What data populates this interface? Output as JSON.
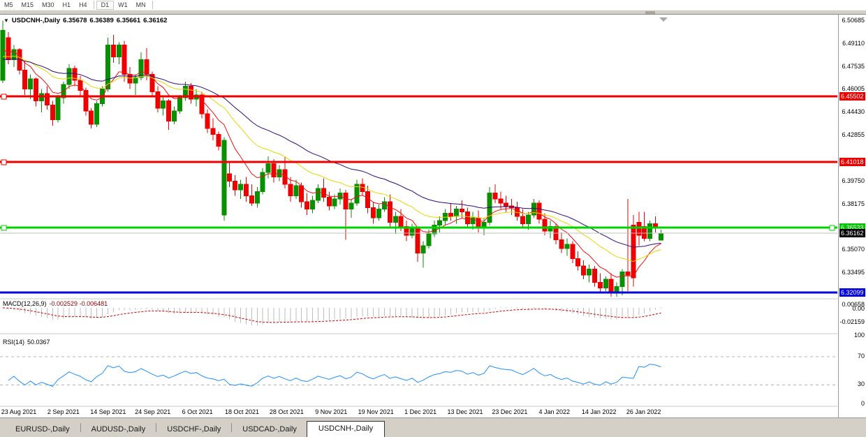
{
  "toolbar": {
    "timeframes": [
      {
        "label": "M5"
      },
      {
        "label": "M15"
      },
      {
        "label": "M30"
      },
      {
        "label": "H1"
      },
      {
        "label": "H4"
      },
      {
        "label": "D1"
      },
      {
        "label": "W1"
      },
      {
        "label": "MN"
      }
    ],
    "selected": "D1"
  },
  "icons": {
    "dropdown": "▼"
  },
  "chart": {
    "title": {
      "symbol": "USDCNH-,Daily",
      "open": "6.35678",
      "high": "6.36389",
      "low": "6.35661",
      "close": "6.36162"
    }
  },
  "macd_panel": {
    "name": "MACD(12,26,9)",
    "values": "-0.002529 -0.006481",
    "scale": [
      "0.00658",
      "0.00",
      "-0.02159"
    ]
  },
  "rsi_panel": {
    "name": "RSI(14)",
    "value": "50.0367",
    "scale": [
      "100",
      "70",
      "30",
      "0"
    ]
  },
  "price_axis": {
    "ticks": [
      "6.50685",
      "6.49110",
      "6.47535",
      "6.46005",
      "6.44430",
      "6.42855",
      "6.39750",
      "6.38175",
      "6.35070",
      "6.33495"
    ],
    "badges": [
      {
        "label": "6.45502",
        "bg": "#e60000",
        "fg": "#ffffff"
      },
      {
        "label": "6.41018",
        "bg": "#e60000",
        "fg": "#ffffff"
      },
      {
        "label": "6.36533",
        "bg": "#00c400",
        "fg": "#ffffff"
      },
      {
        "label": "6.36162",
        "bg": "#000000",
        "fg": "#ffffff"
      },
      {
        "label": "6.32099",
        "bg": "#0000e0",
        "fg": "#ffffff"
      }
    ]
  },
  "tabs": {
    "items": [
      {
        "label": "EURUSD-,Daily"
      },
      {
        "label": "AUDUSD-,Daily"
      },
      {
        "label": "USDCHF-,Daily"
      },
      {
        "label": "USDCAD-,Daily"
      },
      {
        "label": "USDCNH-,Daily"
      }
    ],
    "active": "USDCNH-,Daily"
  },
  "chart_data": {
    "type": "candlestick",
    "symbol": "USDCNH-,Daily",
    "title": "USDCNH-,Daily 6.35678 6.36389 6.35661 6.36162",
    "ylim": [
      6.314,
      6.512
    ],
    "x_dates": [
      "23 Aug 2021",
      "2 Sep 2021",
      "14 Sep 2021",
      "24 Sep 2021",
      "6 Oct 2021",
      "18 Oct 2021",
      "28 Oct 2021",
      "9 Nov 2021",
      "19 Nov 2021",
      "1 Dec 2021",
      "13 Dec 2021",
      "23 Dec 2021",
      "4 Jan 2022",
      "14 Jan 2022",
      "26 Jan 2022"
    ],
    "hlines": [
      {
        "price": 6.45502,
        "color": "#ee0000",
        "width": 3,
        "role": "resistance"
      },
      {
        "price": 6.41018,
        "color": "#ee0000",
        "width": 3,
        "role": "resistance"
      },
      {
        "price": 6.36533,
        "color": "#00d400",
        "width": 3,
        "role": "support"
      },
      {
        "price": 6.32099,
        "color": "#0000dd",
        "width": 3,
        "role": "support"
      },
      {
        "price": 6.36162,
        "color": "#c0c0c0",
        "width": 1,
        "role": "current-price"
      }
    ],
    "moving_averages": [
      {
        "color": "#ee1111",
        "type": "fast"
      },
      {
        "color": "#e8d800",
        "type": "medium"
      },
      {
        "color": "#300878",
        "type": "slow"
      }
    ],
    "indicators": [
      {
        "name": "MACD",
        "params": [
          12,
          26,
          9
        ],
        "current_values": [
          -0.002529,
          -0.006481
        ],
        "axis": [
          0.00658,
          0.0,
          -0.02159
        ]
      },
      {
        "name": "RSI",
        "params": [
          14
        ],
        "current_value": 50.0367,
        "levels": [
          70,
          30
        ],
        "axis": [
          100,
          70,
          30,
          0
        ]
      }
    ],
    "candles": [
      [
        6.466,
        6.5068,
        6.464,
        6.5
      ],
      [
        6.495,
        6.499,
        6.477,
        6.48
      ],
      [
        6.48,
        6.49,
        6.475,
        6.487
      ],
      [
        6.487,
        6.488,
        6.47,
        6.473
      ],
      [
        6.473,
        6.479,
        6.456,
        6.46
      ],
      [
        6.46,
        6.47,
        6.453,
        6.467
      ],
      [
        6.467,
        6.468,
        6.448,
        6.452
      ],
      [
        6.452,
        6.46,
        6.444,
        6.457
      ],
      [
        6.457,
        6.462,
        6.446,
        6.449
      ],
      [
        6.449,
        6.452,
        6.435,
        6.439
      ],
      [
        6.439,
        6.456,
        6.437,
        6.454
      ],
      [
        6.454,
        6.465,
        6.45,
        6.463
      ],
      [
        6.463,
        6.477,
        6.46,
        6.474
      ],
      [
        6.474,
        6.476,
        6.462,
        6.466
      ],
      [
        6.466,
        6.469,
        6.455,
        6.459
      ],
      [
        6.459,
        6.461,
        6.442,
        6.445
      ],
      [
        6.445,
        6.447,
        6.433,
        6.436
      ],
      [
        6.436,
        6.452,
        6.434,
        6.45
      ],
      [
        6.45,
        6.462,
        6.448,
        6.46
      ],
      [
        6.46,
        6.495,
        6.458,
        6.49
      ],
      [
        6.49,
        6.497,
        6.478,
        6.482
      ],
      [
        6.482,
        6.492,
        6.477,
        6.49
      ],
      [
        6.49,
        6.493,
        6.465,
        6.47
      ],
      [
        6.47,
        6.475,
        6.46,
        6.464
      ],
      [
        6.464,
        6.47,
        6.456,
        6.468
      ],
      [
        6.468,
        6.485,
        6.466,
        6.48
      ],
      [
        6.48,
        6.488,
        6.466,
        6.47
      ],
      [
        6.47,
        6.472,
        6.455,
        6.458
      ],
      [
        6.458,
        6.462,
        6.444,
        6.447
      ],
      [
        6.447,
        6.455,
        6.442,
        6.452
      ],
      [
        6.452,
        6.453,
        6.432,
        6.438
      ],
      [
        6.438,
        6.448,
        6.436,
        6.445
      ],
      [
        6.445,
        6.456,
        6.443,
        6.454
      ],
      [
        6.454,
        6.465,
        6.452,
        6.462
      ],
      [
        6.462,
        6.464,
        6.45,
        6.453
      ],
      [
        6.453,
        6.46,
        6.448,
        6.456
      ],
      [
        6.456,
        6.458,
        6.44,
        6.443
      ],
      [
        6.443,
        6.446,
        6.43,
        6.433
      ],
      [
        6.433,
        6.44,
        6.425,
        6.429
      ],
      [
        6.429,
        6.431,
        6.418,
        6.421
      ],
      [
        6.374,
        6.427,
        6.37,
        6.425
      ],
      [
        6.402,
        6.41,
        6.393,
        6.397
      ],
      [
        6.397,
        6.401,
        6.387,
        6.391
      ],
      [
        6.391,
        6.398,
        6.385,
        6.395
      ],
      [
        6.395,
        6.4,
        6.383,
        6.387
      ],
      [
        6.387,
        6.395,
        6.38,
        6.382
      ],
      [
        6.382,
        6.393,
        6.379,
        6.39
      ],
      [
        6.39,
        6.406,
        6.388,
        6.403
      ],
      [
        6.403,
        6.414,
        6.399,
        6.409
      ],
      [
        6.409,
        6.412,
        6.396,
        6.4
      ],
      [
        6.4,
        6.408,
        6.397,
        6.405
      ],
      [
        6.405,
        6.414,
        6.392,
        6.395
      ],
      [
        6.395,
        6.4,
        6.383,
        6.387
      ],
      [
        6.387,
        6.398,
        6.385,
        6.394
      ],
      [
        6.394,
        6.396,
        6.379,
        6.383
      ],
      [
        6.383,
        6.389,
        6.374,
        6.378
      ],
      [
        6.378,
        6.387,
        6.375,
        6.384
      ],
      [
        6.384,
        6.395,
        6.382,
        6.392
      ],
      [
        6.392,
        6.399,
        6.383,
        6.386
      ],
      [
        6.386,
        6.39,
        6.377,
        6.38
      ],
      [
        6.38,
        6.388,
        6.378,
        6.385
      ],
      [
        6.385,
        6.392,
        6.381,
        6.389
      ],
      [
        6.389,
        6.391,
        6.357,
        6.378
      ],
      [
        6.378,
        6.385,
        6.372,
        6.382
      ],
      [
        6.382,
        6.398,
        6.38,
        6.395
      ],
      [
        6.395,
        6.399,
        6.387,
        6.39
      ],
      [
        6.39,
        6.394,
        6.375,
        6.379
      ],
      [
        6.379,
        6.383,
        6.368,
        6.372
      ],
      [
        6.372,
        6.381,
        6.37,
        6.378
      ],
      [
        6.378,
        6.386,
        6.376,
        6.383
      ],
      [
        6.383,
        6.388,
        6.365,
        6.369
      ],
      [
        6.369,
        6.376,
        6.361,
        6.373
      ],
      [
        6.373,
        6.378,
        6.363,
        6.366
      ],
      [
        6.366,
        6.37,
        6.356,
        6.36
      ],
      [
        6.36,
        6.368,
        6.358,
        6.365
      ],
      [
        6.365,
        6.366,
        6.342,
        6.348
      ],
      [
        6.348,
        6.356,
        6.338,
        6.353
      ],
      [
        6.353,
        6.364,
        6.351,
        6.361
      ],
      [
        6.361,
        6.37,
        6.359,
        6.367
      ],
      [
        6.367,
        6.373,
        6.362,
        6.37
      ],
      [
        6.37,
        6.378,
        6.367,
        6.375
      ],
      [
        6.375,
        6.382,
        6.37,
        6.373
      ],
      [
        6.373,
        6.38,
        6.368,
        6.378
      ],
      [
        6.378,
        6.384,
        6.372,
        6.376
      ],
      [
        6.376,
        6.379,
        6.365,
        6.368
      ],
      [
        6.368,
        6.376,
        6.364,
        6.372
      ],
      [
        6.372,
        6.377,
        6.362,
        6.365
      ],
      [
        6.365,
        6.372,
        6.36,
        6.369
      ],
      [
        6.369,
        6.393,
        6.367,
        6.389
      ],
      [
        6.389,
        6.395,
        6.382,
        6.385
      ],
      [
        6.385,
        6.39,
        6.378,
        6.382
      ],
      [
        6.382,
        6.387,
        6.376,
        6.38
      ],
      [
        6.38,
        6.385,
        6.374,
        6.379
      ],
      [
        6.379,
        6.383,
        6.37,
        6.373
      ],
      [
        6.373,
        6.378,
        6.365,
        6.368
      ],
      [
        6.368,
        6.376,
        6.364,
        6.374
      ],
      [
        6.374,
        6.385,
        6.372,
        6.382
      ],
      [
        6.382,
        6.384,
        6.368,
        6.371
      ],
      [
        6.371,
        6.375,
        6.36,
        6.363
      ],
      [
        6.363,
        6.37,
        6.358,
        6.366
      ],
      [
        6.366,
        6.368,
        6.354,
        6.357
      ],
      [
        6.357,
        6.362,
        6.348,
        6.351
      ],
      [
        6.351,
        6.358,
        6.346,
        6.354
      ],
      [
        6.354,
        6.356,
        6.341,
        6.344
      ],
      [
        6.344,
        6.349,
        6.336,
        6.339
      ],
      [
        6.339,
        6.343,
        6.33,
        6.333
      ],
      [
        6.333,
        6.34,
        6.328,
        6.337
      ],
      [
        6.337,
        6.339,
        6.325,
        6.328
      ],
      [
        6.328,
        6.334,
        6.321,
        6.324
      ],
      [
        6.324,
        6.332,
        6.322,
        6.33
      ],
      [
        6.33,
        6.334,
        6.318,
        6.322
      ],
      [
        6.322,
        6.328,
        6.318,
        6.325
      ],
      [
        6.325,
        6.337,
        6.319,
        6.335
      ],
      [
        6.335,
        6.385,
        6.322,
        6.333
      ],
      [
        6.367,
        6.374,
        6.325,
        6.331
      ],
      [
        6.369,
        6.376,
        6.353,
        6.36
      ],
      [
        6.366,
        6.376,
        6.356,
        6.358
      ],
      [
        6.358,
        6.37,
        6.356,
        6.368
      ],
      [
        6.368,
        6.373,
        6.362,
        6.366
      ],
      [
        6.35678,
        6.36389,
        6.35661,
        6.36162
      ]
    ]
  }
}
